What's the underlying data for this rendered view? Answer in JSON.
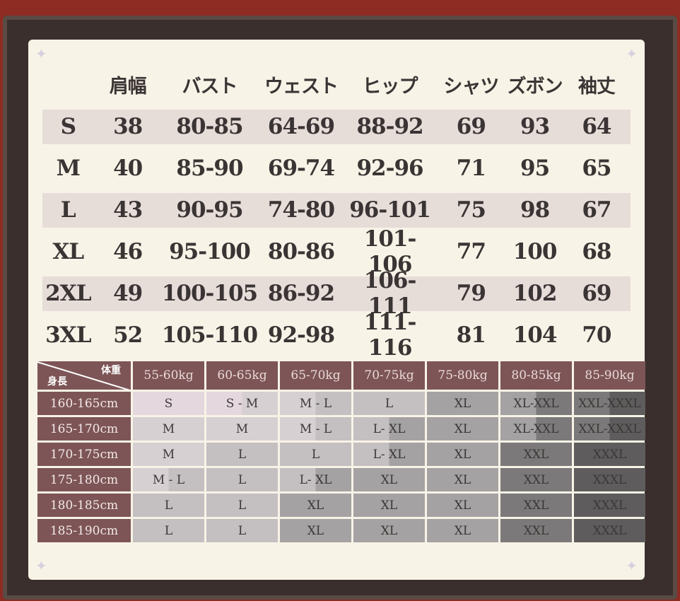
{
  "measurements": {
    "headers": [
      "",
      "肩幅",
      "バスト",
      "ウェスト",
      "ヒップ",
      "シャツ",
      "ズボン",
      "袖丈"
    ],
    "rows": [
      [
        "S",
        "38",
        "80-85",
        "64-69",
        "88-92",
        "69",
        "93",
        "64"
      ],
      [
        "M",
        "40",
        "85-90",
        "69-74",
        "92-96",
        "71",
        "95",
        "65"
      ],
      [
        "L",
        "43",
        "90-95",
        "74-80",
        "96-101",
        "75",
        "98",
        "67"
      ],
      [
        "XL",
        "46",
        "95-100",
        "80-86",
        "101-106",
        "77",
        "100",
        "68"
      ],
      [
        "2XL",
        "49",
        "100-105",
        "86-92",
        "106-111",
        "79",
        "102",
        "69"
      ],
      [
        "3XL",
        "52",
        "105-110",
        "92-98",
        "111-116",
        "81",
        "104",
        "70"
      ]
    ]
  },
  "fit_chart": {
    "corner_weight": "体重",
    "corner_height": "身長",
    "weights": [
      "55-60kg",
      "60-65kg",
      "65-70kg",
      "70-75kg",
      "75-80kg",
      "80-85kg",
      "85-90kg"
    ],
    "heights": [
      "160-165cm",
      "165-170cm",
      "170-175cm",
      "175-180cm",
      "180-185cm",
      "185-190cm"
    ],
    "cells": [
      [
        "S",
        "S - M",
        "M - L",
        "L",
        "XL",
        "XL-XXL",
        "XXL-XXXL"
      ],
      [
        "M",
        "M",
        "M - L",
        "L- XL",
        "XL",
        "XL-XXL",
        "XXL-XXXL"
      ],
      [
        "M",
        "L",
        "L",
        "L- XL",
        "XL",
        "XXL",
        "XXXL"
      ],
      [
        "M - L",
        "L",
        "L- XL",
        "XL",
        "XL",
        "XXL",
        "XXXL"
      ],
      [
        "L",
        "L",
        "XL",
        "XL",
        "XL",
        "XXL",
        "XXXL"
      ],
      [
        "L",
        "L",
        "XL",
        "XL",
        "XL",
        "XXL",
        "XXXL"
      ]
    ]
  },
  "colors": {
    "background": "#8e2b22",
    "header": "#7d5556",
    "size_shades": {
      "S": "#e4d8de",
      "M": "#d6d0d2",
      "L": "#c4bfc0",
      "XL": "#a4a2a2",
      "XXL": "#7b7979",
      "XXXL": "#5e5c5c"
    }
  }
}
